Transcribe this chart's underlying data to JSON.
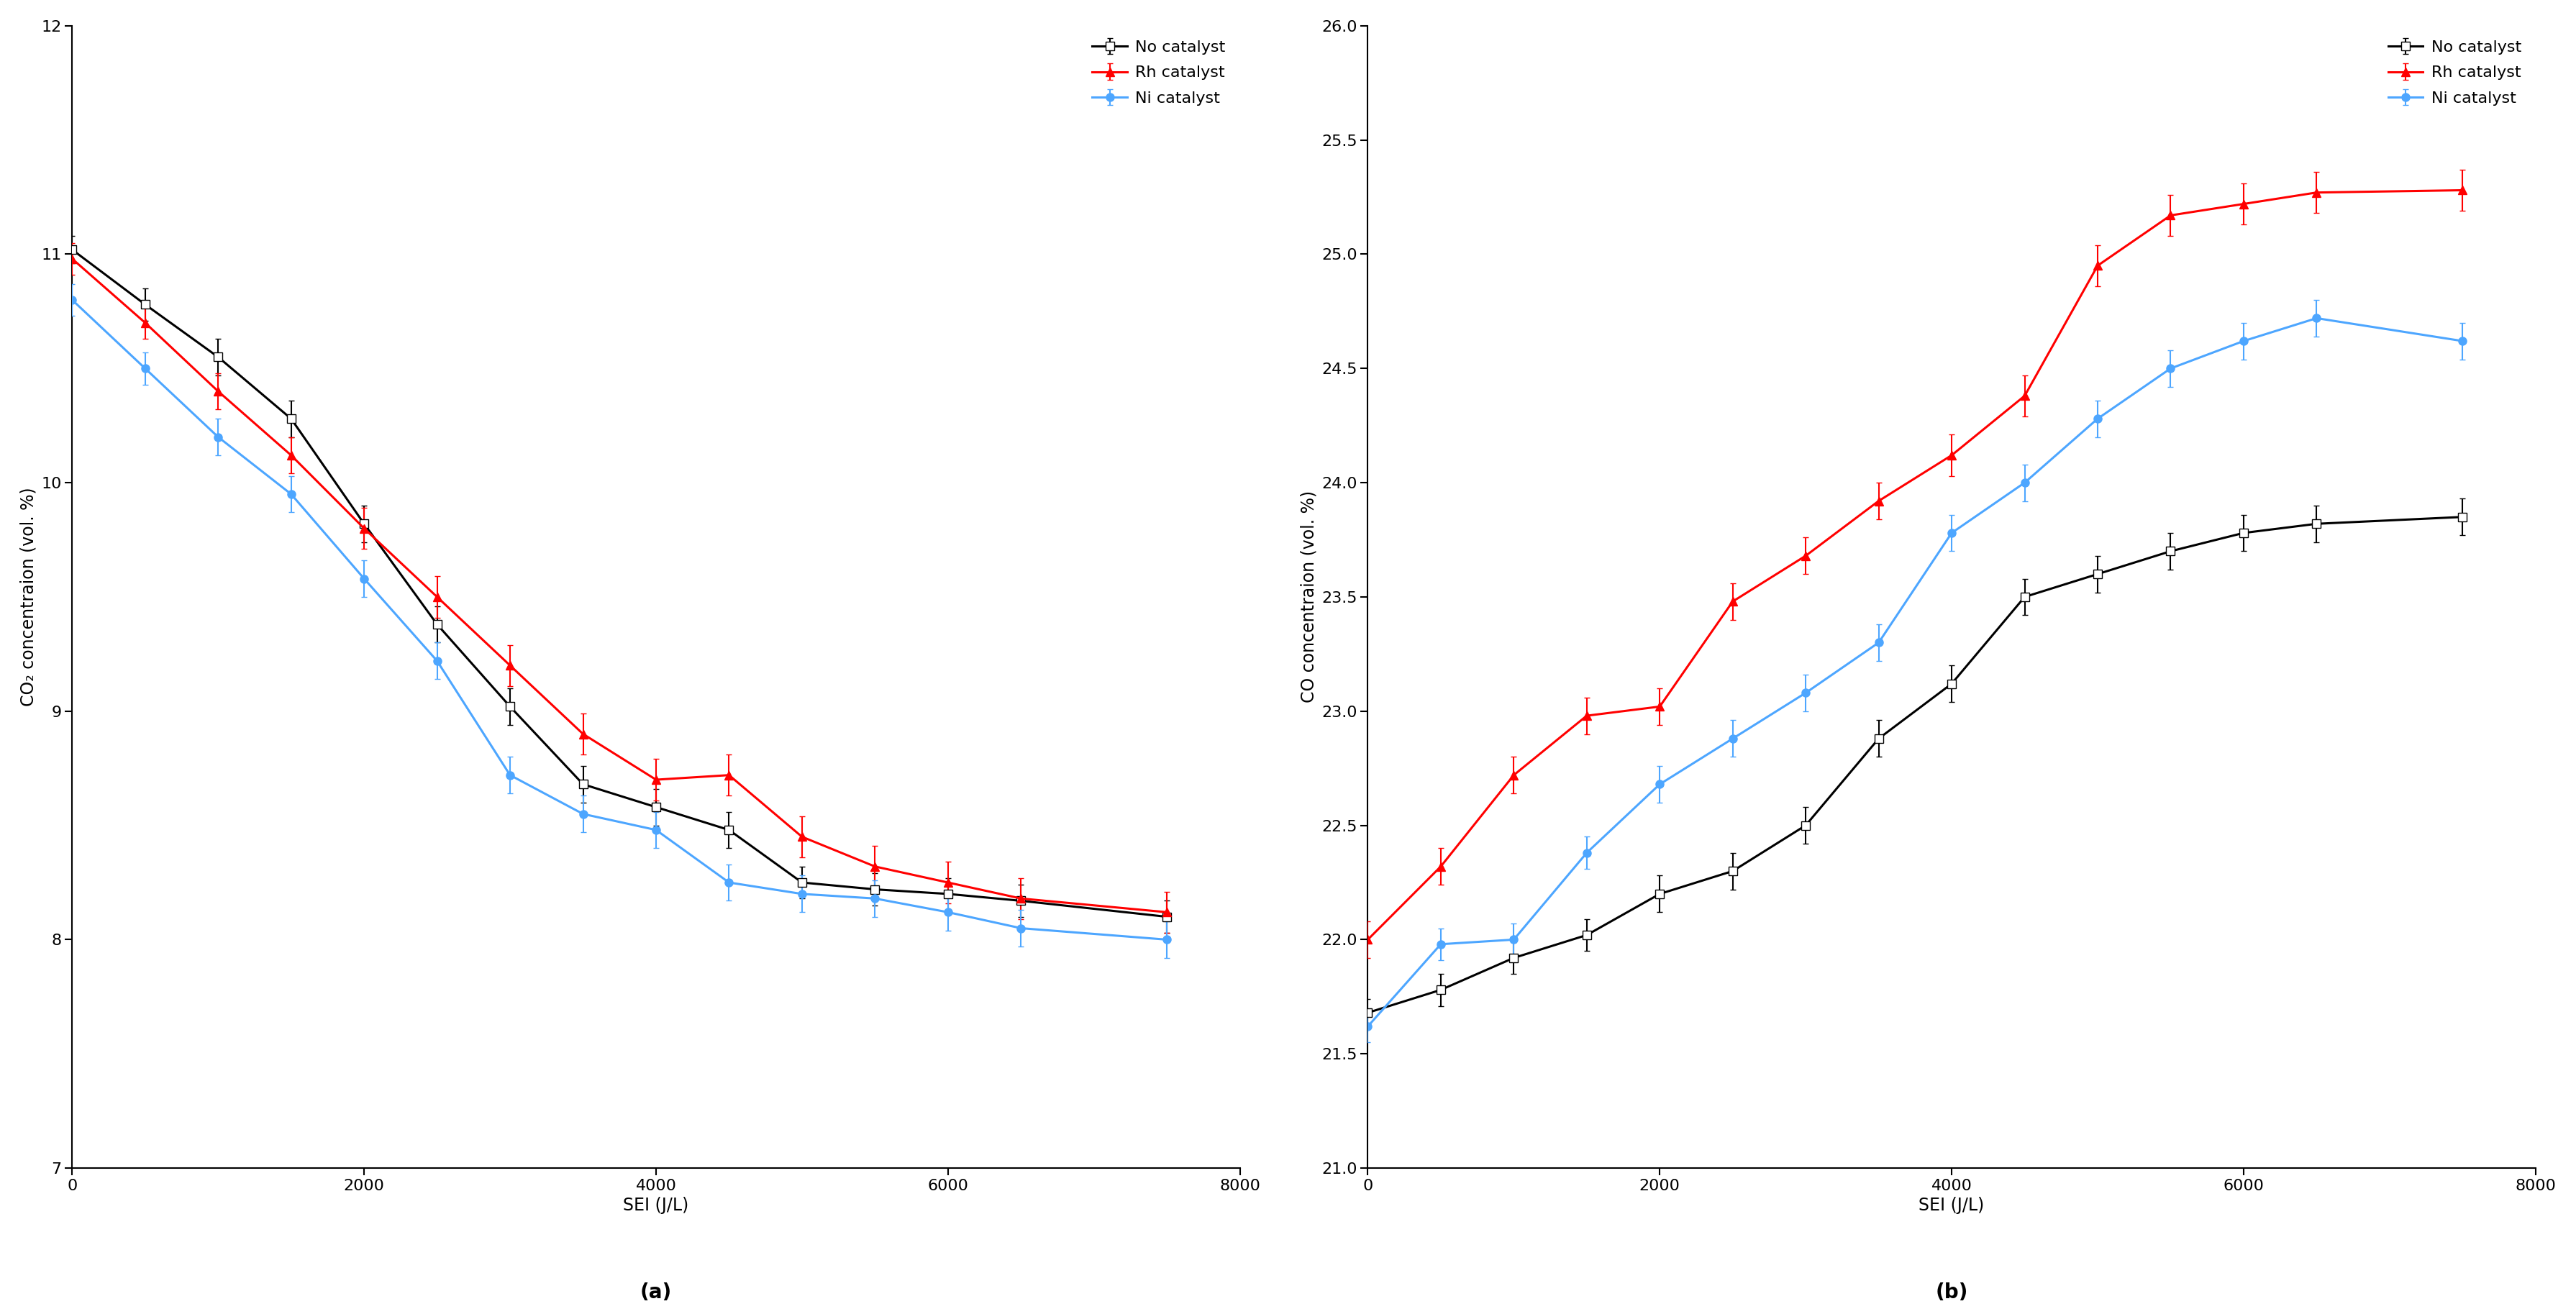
{
  "panel_a": {
    "xlabel": "SEI (J/L)",
    "ylabel": "CO₂ concentraion (vol. %)",
    "label": "(a)",
    "xlim": [
      0,
      8000
    ],
    "ylim": [
      7,
      12
    ],
    "yticks": [
      7,
      8,
      9,
      10,
      11,
      12
    ],
    "xticks": [
      0,
      2000,
      4000,
      6000,
      8000
    ],
    "series": {
      "no_catalyst": {
        "label": "No catalyst",
        "color": "#000000",
        "marker": "s",
        "markerfacecolor": "white",
        "x": [
          0,
          500,
          1000,
          1500,
          2000,
          2500,
          3000,
          3500,
          4000,
          4500,
          5000,
          5500,
          6000,
          6500,
          7500
        ],
        "y": [
          11.02,
          10.78,
          10.55,
          10.28,
          9.82,
          9.38,
          9.02,
          8.68,
          8.58,
          8.48,
          8.25,
          8.22,
          8.2,
          8.17,
          8.1
        ],
        "yerr": [
          0.06,
          0.07,
          0.08,
          0.08,
          0.08,
          0.08,
          0.08,
          0.08,
          0.08,
          0.08,
          0.07,
          0.07,
          0.07,
          0.07,
          0.07
        ]
      },
      "rh_catalyst": {
        "label": "Rh catalyst",
        "color": "#ff0000",
        "marker": "^",
        "markerfacecolor": "#ff0000",
        "x": [
          0,
          500,
          1000,
          1500,
          2000,
          2500,
          3000,
          3500,
          4000,
          4500,
          5000,
          5500,
          6000,
          6500,
          7500
        ],
        "y": [
          10.98,
          10.7,
          10.4,
          10.12,
          9.8,
          9.5,
          9.2,
          8.9,
          8.7,
          8.72,
          8.45,
          8.32,
          8.25,
          8.18,
          8.12
        ],
        "yerr": [
          0.07,
          0.07,
          0.08,
          0.08,
          0.09,
          0.09,
          0.09,
          0.09,
          0.09,
          0.09,
          0.09,
          0.09,
          0.09,
          0.09,
          0.09
        ]
      },
      "ni_catalyst": {
        "label": "Ni catalyst",
        "color": "#4da6ff",
        "marker": "o",
        "markerfacecolor": "#4da6ff",
        "x": [
          0,
          500,
          1000,
          1500,
          2000,
          2500,
          3000,
          3500,
          4000,
          4500,
          5000,
          5500,
          6000,
          6500,
          7500
        ],
        "y": [
          10.8,
          10.5,
          10.2,
          9.95,
          9.58,
          9.22,
          8.72,
          8.55,
          8.48,
          8.25,
          8.2,
          8.18,
          8.12,
          8.05,
          8.0
        ],
        "yerr": [
          0.07,
          0.07,
          0.08,
          0.08,
          0.08,
          0.08,
          0.08,
          0.08,
          0.08,
          0.08,
          0.08,
          0.08,
          0.08,
          0.08,
          0.08
        ]
      }
    }
  },
  "panel_b": {
    "xlabel": "SEI (J/L)",
    "ylabel": "CO concentraion (vol. %)",
    "label": "(b)",
    "xlim": [
      0,
      8000
    ],
    "ylim": [
      21,
      26
    ],
    "yticks": [
      21,
      21.5,
      22,
      22.5,
      23,
      23.5,
      24,
      24.5,
      25,
      25.5,
      26
    ],
    "xticks": [
      0,
      2000,
      4000,
      6000,
      8000
    ],
    "series": {
      "no_catalyst": {
        "label": "No catalyst",
        "color": "#000000",
        "marker": "s",
        "markerfacecolor": "white",
        "x": [
          0,
          500,
          1000,
          1500,
          2000,
          2500,
          3000,
          3500,
          4000,
          4500,
          5000,
          5500,
          6000,
          6500,
          7500
        ],
        "y": [
          21.68,
          21.78,
          21.92,
          22.02,
          22.2,
          22.3,
          22.5,
          22.88,
          23.12,
          23.5,
          23.6,
          23.7,
          23.78,
          23.82,
          23.85
        ],
        "yerr": [
          0.06,
          0.07,
          0.07,
          0.07,
          0.08,
          0.08,
          0.08,
          0.08,
          0.08,
          0.08,
          0.08,
          0.08,
          0.08,
          0.08,
          0.08
        ]
      },
      "rh_catalyst": {
        "label": "Rh catalyst",
        "color": "#ff0000",
        "marker": "^",
        "markerfacecolor": "#ff0000",
        "x": [
          0,
          500,
          1000,
          1500,
          2000,
          2500,
          3000,
          3500,
          4000,
          4500,
          5000,
          5500,
          6000,
          6500,
          7500
        ],
        "y": [
          22.0,
          22.32,
          22.72,
          22.98,
          23.02,
          23.48,
          23.68,
          23.92,
          24.12,
          24.38,
          24.95,
          25.17,
          25.22,
          25.27,
          25.28
        ],
        "yerr": [
          0.08,
          0.08,
          0.08,
          0.08,
          0.08,
          0.08,
          0.08,
          0.08,
          0.09,
          0.09,
          0.09,
          0.09,
          0.09,
          0.09,
          0.09
        ]
      },
      "ni_catalyst": {
        "label": "Ni catalyst",
        "color": "#4da6ff",
        "marker": "o",
        "markerfacecolor": "#4da6ff",
        "x": [
          0,
          500,
          1000,
          1500,
          2000,
          2500,
          3000,
          3500,
          4000,
          4500,
          5000,
          5500,
          6000,
          6500,
          7500
        ],
        "y": [
          21.62,
          21.98,
          22.0,
          22.38,
          22.68,
          22.88,
          23.08,
          23.3,
          23.78,
          24.0,
          24.28,
          24.5,
          24.62,
          24.72,
          24.62
        ],
        "yerr": [
          0.07,
          0.07,
          0.07,
          0.07,
          0.08,
          0.08,
          0.08,
          0.08,
          0.08,
          0.08,
          0.08,
          0.08,
          0.08,
          0.08,
          0.08
        ]
      }
    }
  },
  "figure_bg": "#ffffff",
  "axes_bg": "#ffffff",
  "font_size_tick": 16,
  "font_size_label": 17,
  "font_size_legend": 16,
  "font_size_panel_label": 20,
  "linewidth": 2.2,
  "markersize": 8,
  "capsize": 3,
  "elinewidth": 1.5
}
